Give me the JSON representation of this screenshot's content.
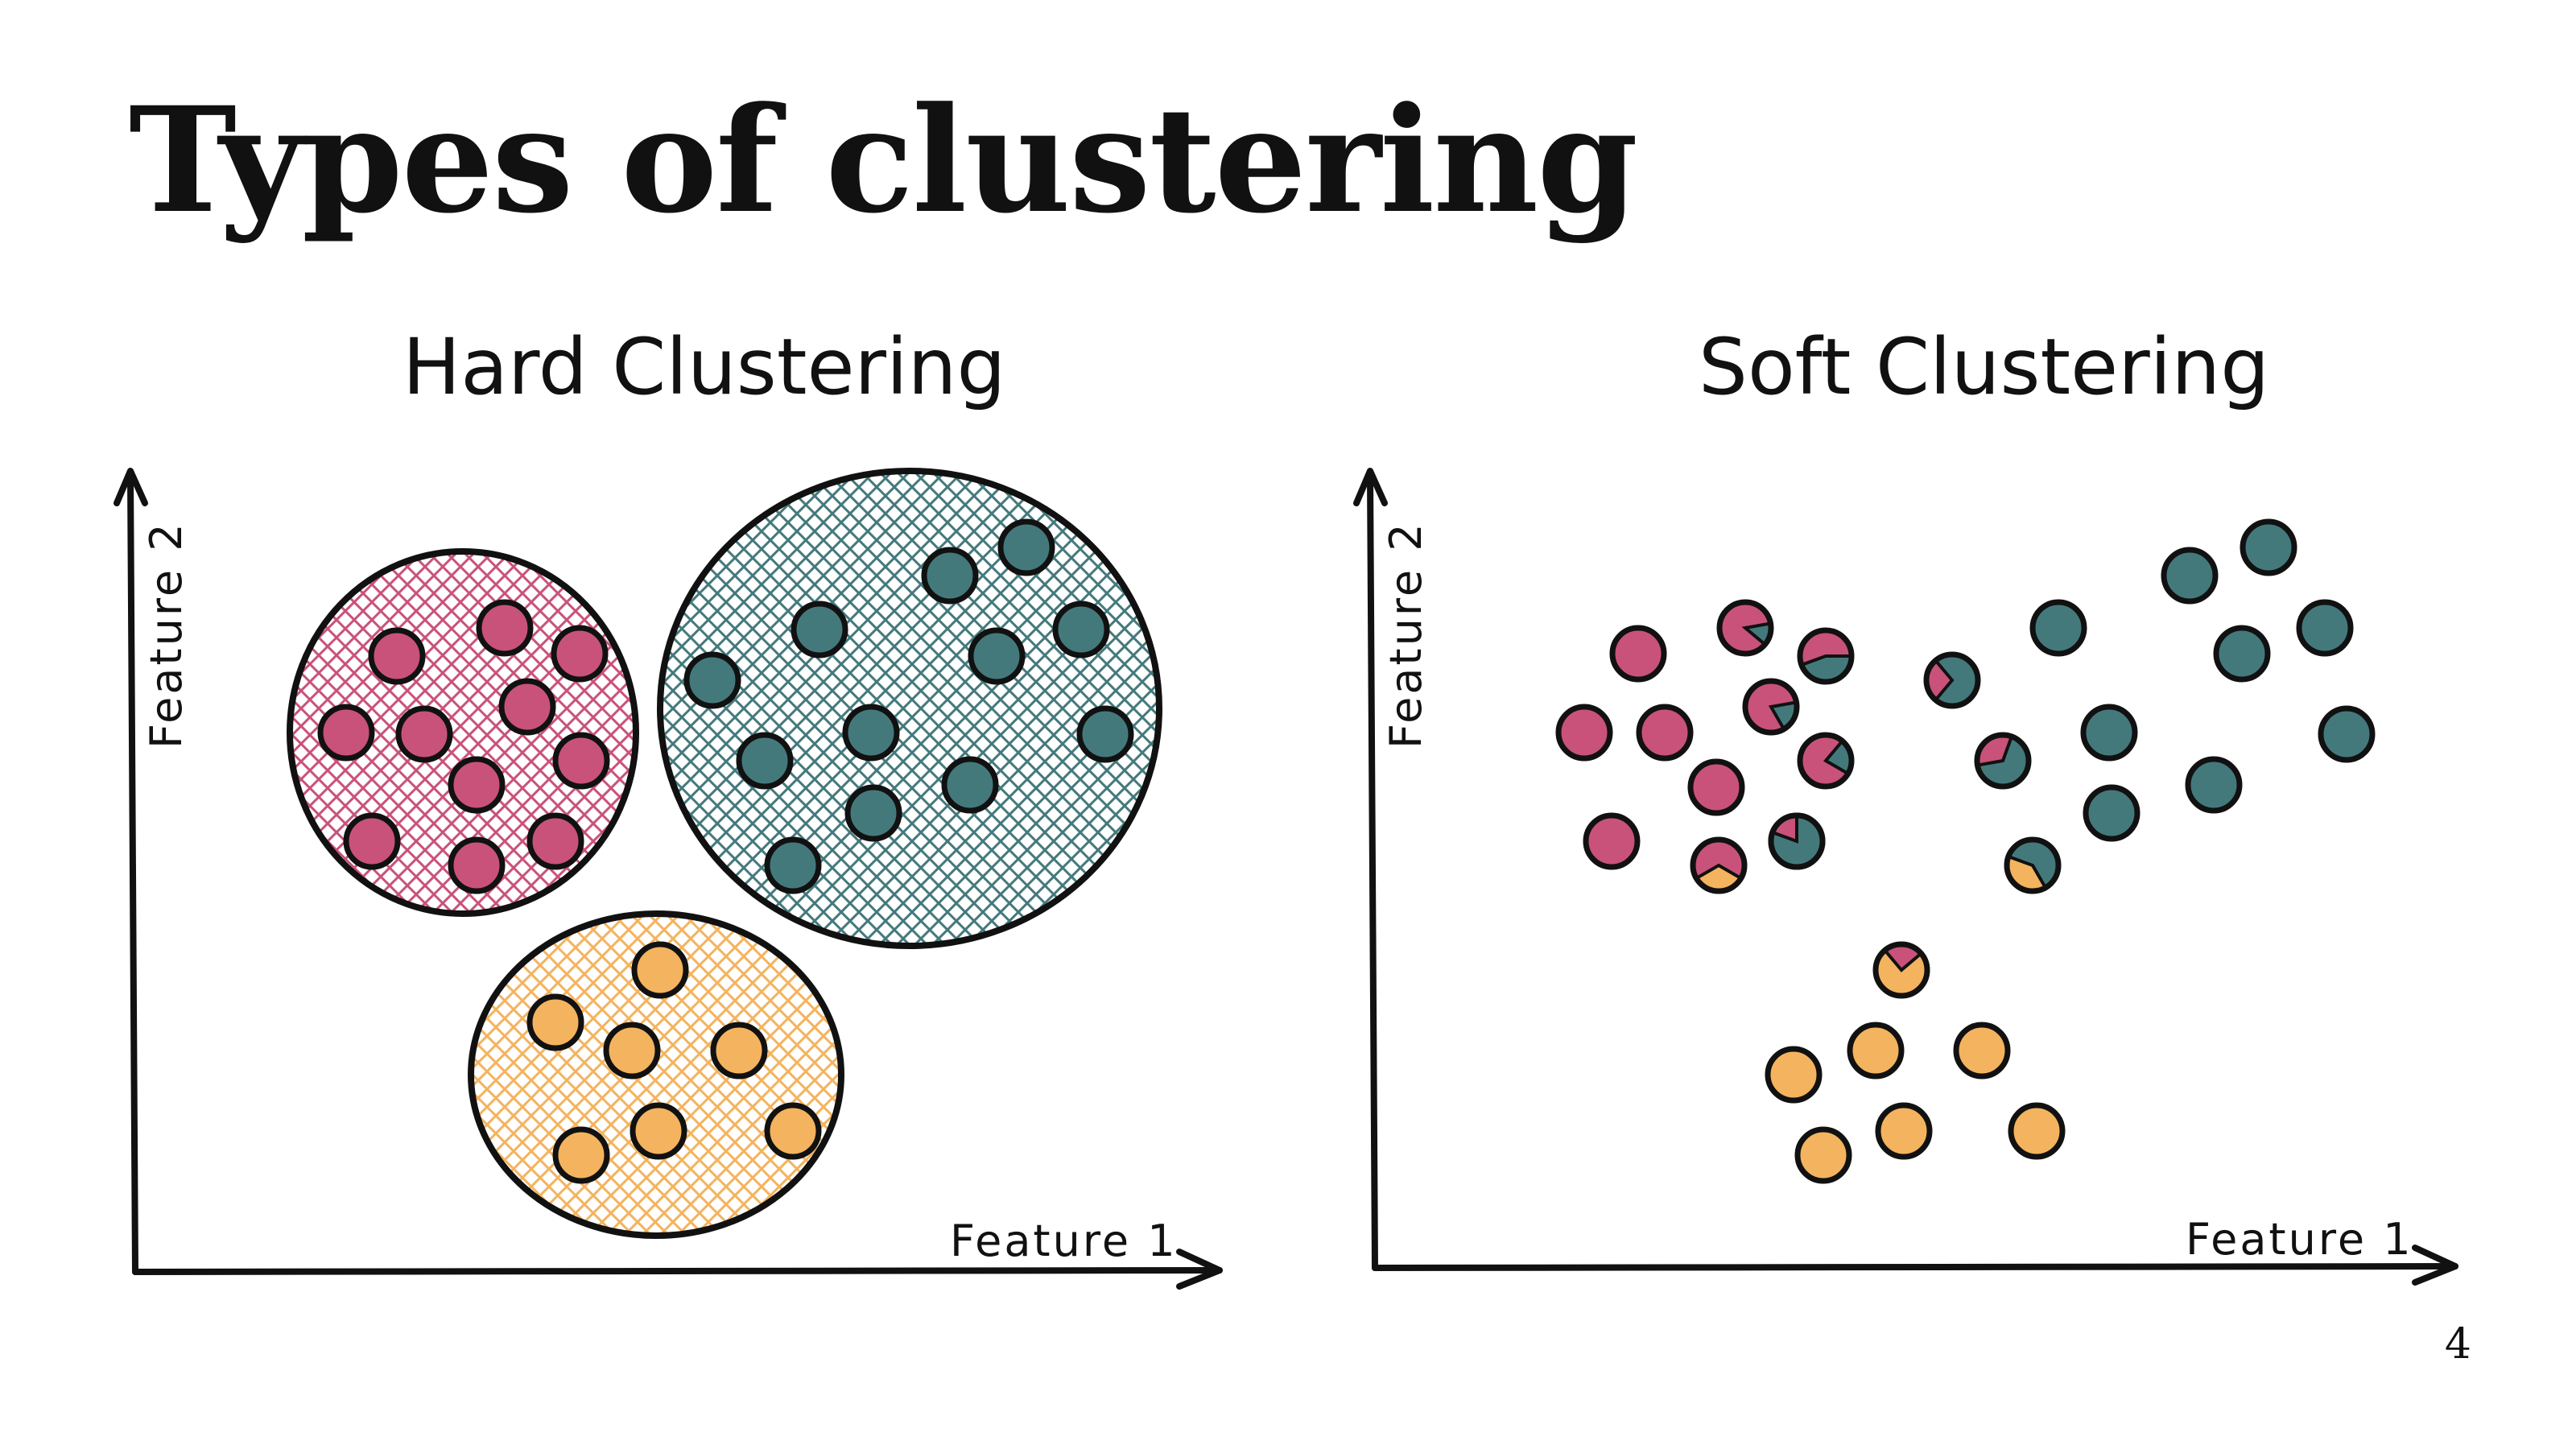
{
  "slide": {
    "title": "Types of clustering",
    "page_number": "4"
  },
  "panels": {
    "hard": {
      "title": "Hard Clustering",
      "x_axis_label": "Feature 1",
      "y_axis_label": "Feature 2"
    },
    "soft": {
      "title": "Soft Clustering",
      "x_axis_label": "Feature 1",
      "y_axis_label": "Feature 2"
    }
  },
  "colors": {
    "pink": "#c9527a",
    "teal": "#44797c",
    "orange": "#f4b35e",
    "ink": "#111111"
  }
}
